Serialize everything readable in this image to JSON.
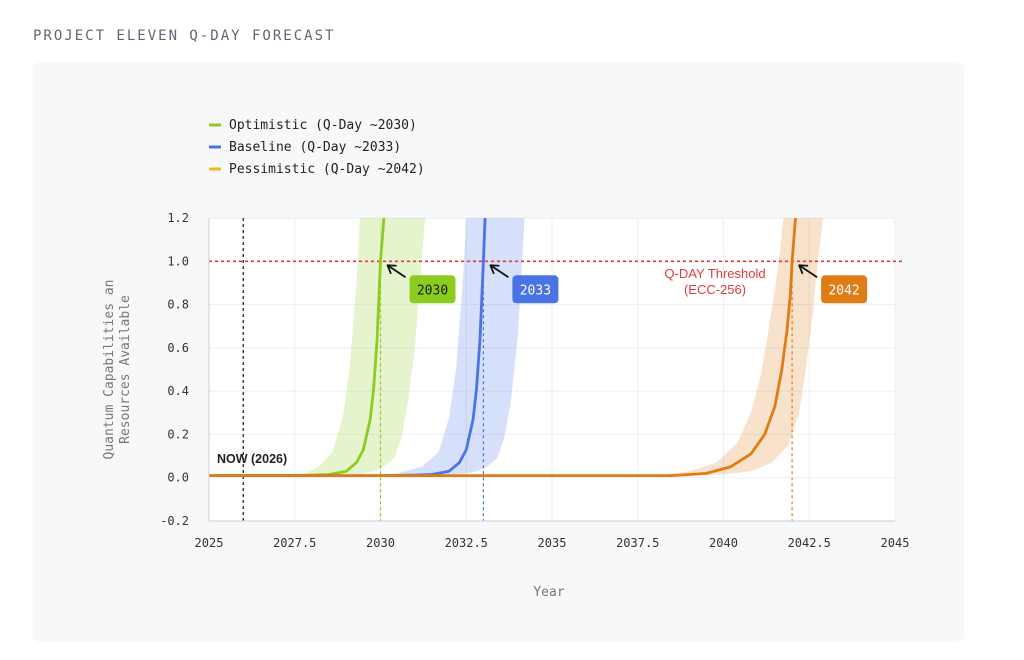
{
  "page": {
    "title": "PROJECT ELEVEN Q-DAY FORECAST"
  },
  "colors": {
    "optimistic": "#8ccc1f",
    "baseline": "#4a73e6",
    "pessimistic": "#e07c16",
    "legend_pessimistic": "#f2b722",
    "threshold": "#e03b3b",
    "now": "#333333"
  },
  "chart_data": {
    "type": "line",
    "title": "",
    "xlabel": "Year",
    "ylabel": [
      "Quantum Capabilities an",
      "Resources Available"
    ],
    "xlim": [
      2025,
      2045
    ],
    "ylim": [
      -0.2,
      1.2
    ],
    "xticks": [
      2025,
      2027.5,
      2030,
      2032.5,
      2035,
      2037.5,
      2040,
      2042.5,
      2045
    ],
    "xtick_labels": [
      "2025",
      "2027.5",
      "2030",
      "2032.5",
      "2035",
      "2037.5",
      "2040",
      "2042.5",
      "2045"
    ],
    "yticks": [
      -0.2,
      0.0,
      0.2,
      0.4,
      0.6,
      0.8,
      1.0,
      1.2
    ],
    "ytick_labels": [
      "-0.2",
      "0.0",
      "0.2",
      "0.4",
      "0.6",
      "0.8",
      "1.0",
      "1.2"
    ],
    "grid": true,
    "legend_position": "top-left",
    "threshold": {
      "y": 1.0,
      "label_lines": [
        "Q-DAY Threshold",
        "(ECC-256)"
      ]
    },
    "now": {
      "x": 2026,
      "label": "NOW (2026)"
    },
    "series": [
      {
        "name": "Optimistic (Q-Day ~2030)",
        "color_key": "optimistic",
        "qday": 2030,
        "badge": "2030",
        "x": [
          2025,
          2027,
          2028,
          2028.5,
          2029,
          2029.3,
          2029.5,
          2029.7,
          2029.8,
          2029.9,
          2030.0,
          2030.1
        ],
        "y": [
          0.01,
          0.01,
          0.012,
          0.015,
          0.03,
          0.07,
          0.13,
          0.27,
          0.41,
          0.64,
          1.0,
          1.2
        ],
        "band_lower": [
          0.01,
          0.01,
          0.011,
          0.012,
          0.014,
          0.02,
          0.03,
          0.05,
          0.09,
          0.18,
          0.35,
          0.6,
          1.2
        ],
        "band_lower_x": [
          2025,
          2027,
          2028,
          2028.5,
          2029,
          2029.5,
          2029.8,
          2030.1,
          2030.4,
          2030.6,
          2030.8,
          2031.0,
          2031.3
        ],
        "band_upper_x": [
          2025,
          2027,
          2027.8,
          2028.2,
          2028.6,
          2028.9,
          2029.1,
          2029.3,
          2029.4
        ],
        "band_upper": [
          0.01,
          0.012,
          0.02,
          0.05,
          0.12,
          0.28,
          0.5,
          0.9,
          1.2
        ]
      },
      {
        "name": "Baseline (Q-Day ~2033)",
        "color_key": "baseline",
        "qday": 2033,
        "badge": "2033",
        "x": [
          2025,
          2030,
          2031,
          2031.5,
          2032,
          2032.3,
          2032.5,
          2032.7,
          2032.8,
          2032.9,
          2033.0,
          2033.05
        ],
        "y": [
          0.01,
          0.01,
          0.012,
          0.015,
          0.03,
          0.07,
          0.13,
          0.27,
          0.41,
          0.64,
          1.0,
          1.2
        ],
        "band_lower_x": [
          2025,
          2030,
          2031,
          2031.5,
          2032,
          2032.5,
          2032.8,
          2033.1,
          2033.4,
          2033.6,
          2033.8,
          2034.0,
          2034.2
        ],
        "band_lower": [
          0.01,
          0.01,
          0.011,
          0.012,
          0.014,
          0.02,
          0.03,
          0.05,
          0.09,
          0.18,
          0.35,
          0.65,
          1.2
        ],
        "band_upper_x": [
          2025,
          2029.5,
          2030.5,
          2031.2,
          2031.7,
          2032.0,
          2032.2,
          2032.4,
          2032.5
        ],
        "band_upper": [
          0.01,
          0.012,
          0.02,
          0.05,
          0.12,
          0.28,
          0.5,
          0.9,
          1.2
        ]
      },
      {
        "name": "Pessimistic (Q-Day ~2042)",
        "color_key": "pessimistic",
        "legend_color_key": "legend_pessimistic",
        "qday": 2042,
        "badge": "2042",
        "x": [
          2025,
          2038.5,
          2039.5,
          2040.2,
          2040.8,
          2041.2,
          2041.5,
          2041.7,
          2041.85,
          2041.95,
          2042.0,
          2042.1
        ],
        "y": [
          0.01,
          0.01,
          0.02,
          0.05,
          0.11,
          0.2,
          0.33,
          0.5,
          0.68,
          0.85,
          1.0,
          1.2
        ],
        "band_lower_x": [
          2025,
          2039.0,
          2040.0,
          2040.8,
          2041.4,
          2041.9,
          2042.2,
          2042.4,
          2042.6,
          2042.75,
          2042.9
        ],
        "band_lower": [
          0.01,
          0.01,
          0.015,
          0.03,
          0.07,
          0.15,
          0.3,
          0.5,
          0.75,
          1.0,
          1.2
        ],
        "band_upper_x": [
          2025,
          2038.0,
          2039.0,
          2039.8,
          2040.4,
          2040.8,
          2041.1,
          2041.3,
          2041.5,
          2041.65,
          2041.75
        ],
        "band_upper": [
          0.01,
          0.012,
          0.03,
          0.07,
          0.16,
          0.3,
          0.48,
          0.67,
          0.87,
          1.05,
          1.2
        ]
      }
    ]
  }
}
